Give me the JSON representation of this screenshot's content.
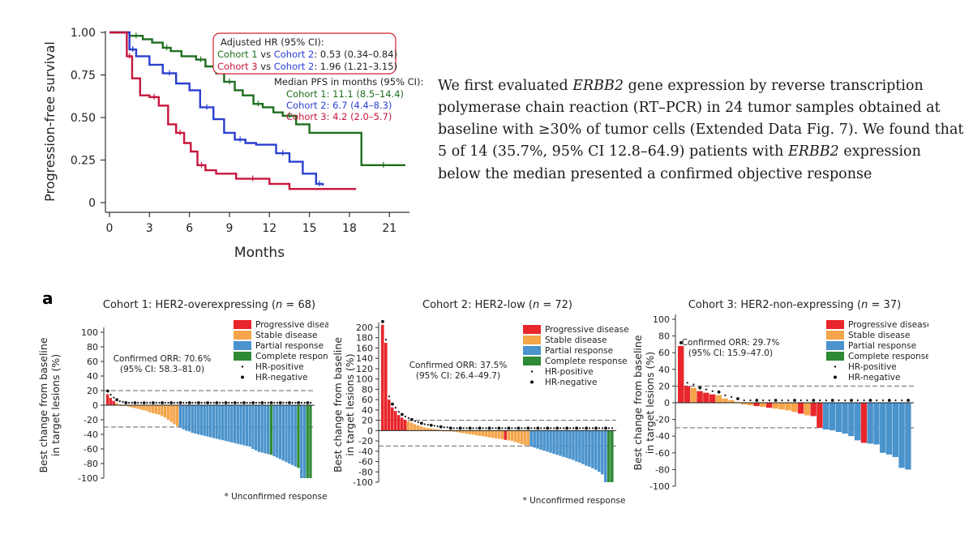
{
  "km": {
    "chart_data": {
      "type": "line",
      "xlabel": "Months",
      "ylabel": "Progression-free survival",
      "xticks": [
        0,
        3,
        6,
        9,
        12,
        15,
        18,
        21
      ],
      "yticks": [
        0,
        0.25,
        0.5,
        0.75,
        1.0
      ],
      "ytick_labels": [
        "0",
        "0.25",
        "0.50",
        "0.75",
        "1.00"
      ],
      "xlim": [
        0,
        22.2
      ],
      "ylim": [
        0,
        1.0
      ],
      "series": [
        {
          "name": "Cohort 1",
          "color": "#1f6e1f",
          "x": [
            0,
            1.5,
            2.5,
            3.2,
            4.0,
            4.6,
            5.4,
            6.5,
            7.2,
            8.0,
            8.6,
            9.4,
            10.0,
            10.8,
            11.5,
            12.3,
            13.0,
            14.0,
            15.0,
            18.9,
            22.2
          ],
          "y": [
            1.0,
            0.98,
            0.96,
            0.94,
            0.91,
            0.89,
            0.86,
            0.84,
            0.8,
            0.76,
            0.71,
            0.66,
            0.63,
            0.58,
            0.56,
            0.53,
            0.51,
            0.46,
            0.41,
            0.22,
            0.22
          ]
        },
        {
          "name": "Cohort 2",
          "color": "#2a3fd0",
          "x": [
            0,
            1.5,
            2.0,
            3.0,
            4.0,
            5.0,
            6.0,
            6.8,
            7.8,
            8.6,
            9.4,
            10.2,
            11.0,
            12.5,
            13.5,
            14.5,
            15.5,
            16.0
          ],
          "y": [
            1.0,
            0.9,
            0.86,
            0.81,
            0.76,
            0.7,
            0.66,
            0.56,
            0.49,
            0.41,
            0.37,
            0.35,
            0.34,
            0.29,
            0.24,
            0.17,
            0.11,
            0.1
          ]
        },
        {
          "name": "Cohort 3",
          "color": "#c8153c",
          "x": [
            0,
            1.3,
            1.7,
            2.3,
            3.0,
            3.7,
            4.4,
            5.0,
            5.6,
            6.1,
            6.6,
            7.2,
            8.0,
            9.5,
            12.0,
            13.5,
            18.5
          ],
          "y": [
            1.0,
            0.86,
            0.73,
            0.63,
            0.62,
            0.57,
            0.46,
            0.41,
            0.35,
            0.3,
            0.22,
            0.19,
            0.17,
            0.14,
            0.11,
            0.08,
            0.08
          ]
        }
      ],
      "annotations": {
        "hr_title": "Adjusted HR (95% CI):",
        "hr_lines": [
          {
            "a": "Cohort 1",
            "vs": " vs ",
            "b": "Cohort 2",
            "value": ": 0.53 (0.34–0.84)",
            "a_color": "#1f6e1f",
            "b_color": "#2a3fd0"
          },
          {
            "a": "Cohort 3",
            "vs": " vs ",
            "b": "Cohort 2",
            "value": ": 1.96 (1.21–3.15)",
            "a_color": "#c8153c",
            "b_color": "#2a3fd0"
          }
        ],
        "median_title": "Median PFS in months (95% CI):",
        "median_lines": [
          {
            "text": "Cohort 1: 11.1 (8.5–14.4)",
            "color": "#1f6e1f"
          },
          {
            "text": "Cohort 2: 6.7 (4.4–8.3)",
            "color": "#2a3fd0"
          },
          {
            "text": "Cohort 3: 4.2 (2.0–5.7)",
            "color": "#c8153c"
          }
        ]
      }
    }
  },
  "paragraph": {
    "s1": "We first evaluated ",
    "gene1": "ERBB2",
    "s2": " gene expression by reverse transcription polymerase chain reaction (RT–PCR) in 24 tumor samples obtained at baseline with ≥30% of tumor cells (Extended Data Fig. 7). We found that 5 of 14 (35.7%, 95% CI 12.8–64.9) patients with ",
    "gene2": "ERBB2",
    "s3": " expression below the median presented a confirmed objective response"
  },
  "panel_letter": "a",
  "waterfalls": {
    "chart_data": [
      {
        "type": "bar",
        "title_prefix": "Cohort 1: HER2-overexpressing (",
        "title_n": "n",
        "title_suffix": " = 68)",
        "ylabel_line1": "Best change from baseline",
        "ylabel_line2": "in target lesions (%)",
        "ylim": [
          -100,
          100
        ],
        "yticks": [
          -100,
          -80,
          -60,
          -40,
          -20,
          0,
          20,
          40,
          60,
          80,
          100
        ],
        "thresholds": [
          20,
          -30
        ],
        "orr_line1": "Confirmed ORR: 70.6%",
        "orr_line2": "(95% CI: 58.3–81.0)",
        "footnote": "* Unconfirmed response",
        "legend": [
          "Progressive disease",
          "Stable disease",
          "Partial response",
          "Complete response",
          "HR-positive",
          "HR-negative"
        ],
        "values": [
          15,
          10,
          6,
          3,
          1,
          0,
          -1,
          -2,
          -3,
          -4,
          -5,
          -6,
          -7,
          -8,
          -10,
          -11,
          -12,
          -13,
          -15,
          -17,
          -20,
          -23,
          -26,
          -29,
          -31,
          -33,
          -35,
          -36,
          -38,
          -39,
          -40,
          -41,
          -42,
          -43,
          -44,
          -45,
          -46,
          -47,
          -48,
          -49,
          -50,
          -51,
          -52,
          -53,
          -54,
          -55,
          -56,
          -57,
          -60,
          -62,
          -64,
          -65,
          -66,
          -67,
          -68,
          -70,
          -72,
          -74,
          -76,
          -78,
          -80,
          -82,
          -84,
          -86,
          -100,
          -100,
          -100,
          -100
        ],
        "responses": [
          "PD",
          "PD",
          "PD",
          "SD",
          "SD",
          "SD",
          "SD",
          "SD",
          "SD",
          "SD",
          "SD",
          "SD",
          "SD",
          "SD",
          "SD",
          "SD",
          "SD",
          "SD",
          "SD",
          "SD",
          "SD",
          "SD",
          "SD",
          "SD",
          "PR",
          "PR",
          "PR",
          "PR",
          "PR",
          "PR",
          "PR",
          "PR",
          "PR",
          "PR",
          "PR",
          "PR",
          "PR",
          "PR",
          "PR",
          "PR",
          "PR",
          "PR",
          "PR",
          "PR",
          "PR",
          "PR",
          "PR",
          "PR",
          "PR",
          "PR",
          "PR",
          "PR",
          "PR",
          "PR",
          "CR",
          "PR",
          "PR",
          "PR",
          "PR",
          "PR",
          "PR",
          "PR",
          "PR",
          "CR",
          "PR",
          "PR",
          "CR",
          "CR"
        ]
      },
      {
        "type": "bar",
        "title_prefix": "Cohort 2: HER2-low (",
        "title_n": "n",
        "title_suffix": " = 72)",
        "ylabel_line1": "Best change from baseline",
        "ylabel_line2": "in target lesions (%)",
        "ylim": [
          -100,
          200
        ],
        "yticks": [
          -100,
          -80,
          -60,
          -40,
          -20,
          0,
          20,
          40,
          60,
          80,
          100,
          120,
          140,
          160,
          180,
          200
        ],
        "thresholds": [
          20,
          -30
        ],
        "orr_line1": "Confirmed ORR: 37.5%",
        "orr_line2": "(95% CI: 26.4–49.7)",
        "footnote": "* Unconfirmed response",
        "legend": [
          "Progressive disease",
          "Stable disease",
          "Partial response",
          "Complete response",
          "HR-positive",
          "HR-negative"
        ],
        "values": [
          205,
          170,
          60,
          45,
          38,
          30,
          25,
          21,
          18,
          15,
          12,
          10,
          8,
          6,
          5,
          4,
          3,
          2,
          1,
          0,
          0,
          -1,
          -2,
          -3,
          -4,
          -5,
          -6,
          -7,
          -8,
          -9,
          -10,
          -11,
          -12,
          -13,
          -14,
          -15,
          -16,
          -17,
          -18,
          -19,
          -20,
          -22,
          -24,
          -26,
          -28,
          -29,
          -31,
          -33,
          -35,
          -37,
          -39,
          -41,
          -43,
          -45,
          -47,
          -49,
          -51,
          -53,
          -55,
          -57,
          -60,
          -62,
          -65,
          -68,
          -70,
          -73,
          -76,
          -80,
          -85,
          -100,
          -100,
          -100
        ],
        "responses": [
          "PD",
          "PD",
          "PD",
          "PD",
          "PD",
          "PD",
          "PD",
          "PD",
          "SD",
          "SD",
          "SD",
          "SD",
          "SD",
          "SD",
          "SD",
          "SD",
          "SD",
          "SD",
          "SD",
          "SD",
          "SD",
          "SD",
          "SD",
          "SD",
          "SD",
          "SD",
          "SD",
          "SD",
          "SD",
          "SD",
          "SD",
          "SD",
          "SD",
          "SD",
          "SD",
          "SD",
          "SD",
          "SD",
          "PD",
          "SD",
          "SD",
          "SD",
          "SD",
          "SD",
          "SD",
          "SD",
          "PR",
          "PR",
          "PR",
          "PR",
          "PR",
          "PR",
          "PR",
          "PR",
          "PR",
          "PR",
          "PR",
          "PR",
          "PR",
          "PR",
          "PR",
          "PR",
          "PR",
          "PR",
          "PR",
          "PR",
          "PR",
          "PR",
          "PR",
          "PR",
          "CR",
          "CR"
        ]
      },
      {
        "type": "bar",
        "title_prefix": "Cohort 3: HER2-non-expressing (",
        "title_n": "n",
        "title_suffix": " = 37)",
        "ylabel_line1": "Best change from baseline",
        "ylabel_line2": "in target lesions (%)",
        "ylim": [
          -100,
          100
        ],
        "yticks": [
          -100,
          -80,
          -60,
          -40,
          -20,
          0,
          20,
          40,
          60,
          80,
          100
        ],
        "thresholds": [
          20,
          -30
        ],
        "orr_line1": "Confirmed ORR: 29.7%",
        "orr_line2": "(95% CI: 15.9–47.0)",
        "footnote": "",
        "legend": [
          "Progressive disease",
          "Stable disease",
          "Partial response",
          "Complete response",
          "HR-positive",
          "HR-negative"
        ],
        "values": [
          68,
          20,
          18,
          14,
          12,
          10,
          9,
          5,
          3,
          1,
          -2,
          -3,
          -4,
          -5,
          -6,
          -7,
          -8,
          -9,
          -11,
          -13,
          -15,
          -16,
          -30,
          -32,
          -33,
          -35,
          -37,
          -40,
          -45,
          -48,
          -49,
          -50,
          -60,
          -62,
          -65,
          -78,
          -80
        ],
        "responses": [
          "PD",
          "PD",
          "SD",
          "PD",
          "PD",
          "PD",
          "SD",
          "SD",
          "SD",
          "SD",
          "SD",
          "SD",
          "PD",
          "SD",
          "PD",
          "SD",
          "SD",
          "SD",
          "SD",
          "PD",
          "SD",
          "PD",
          "PD",
          "PR",
          "PR",
          "PR",
          "PR",
          "PR",
          "PR",
          "PD",
          "PR",
          "PR",
          "PR",
          "PR",
          "PR",
          "PR",
          "PR"
        ]
      }
    ]
  }
}
